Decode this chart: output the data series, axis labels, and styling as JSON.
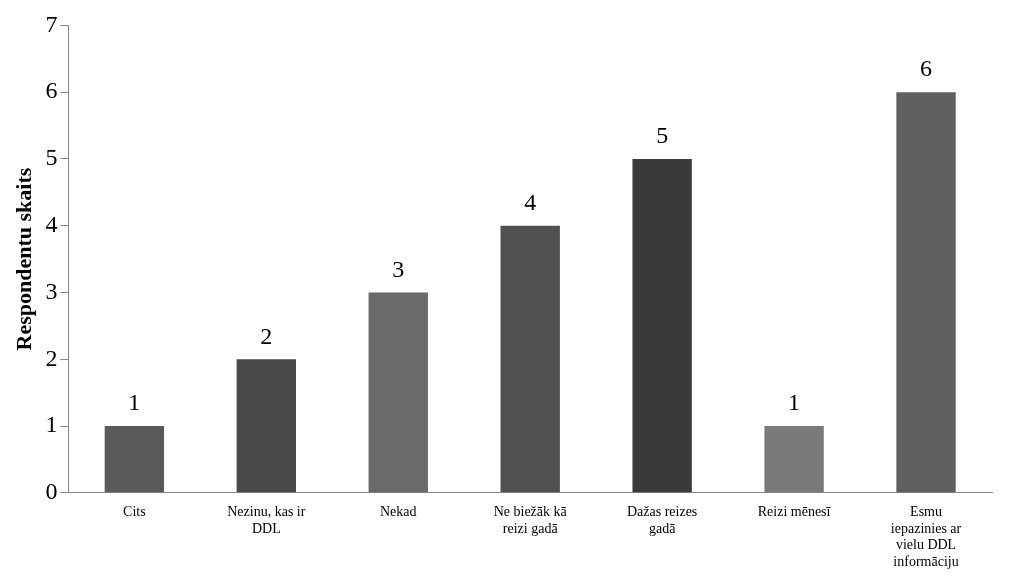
{
  "chart_data": {
    "type": "bar",
    "ylabel": "Respondentu skaits",
    "categories": [
      "Cits",
      "Nezinu, kas ir DDL",
      "Nekad",
      "Ne biežāk kā reizi gadā",
      "Dažas reizes gadā",
      "Reizi mēnesī",
      "Esmu iepazinies ar vielu DDL informāciju"
    ],
    "values": [
      1,
      2,
      3,
      4,
      5,
      1,
      6
    ],
    "colors": [
      "#5a5a5a",
      "#4a4a4a",
      "#6a6a6a",
      "#505050",
      "#3a3a3a",
      "#7a7a7a",
      "#606060"
    ],
    "ylim": [
      0,
      7
    ],
    "yticks": [
      0,
      1,
      2,
      3,
      4,
      5,
      6,
      7
    ],
    "grid": false,
    "legend": false,
    "data_labels": true
  }
}
